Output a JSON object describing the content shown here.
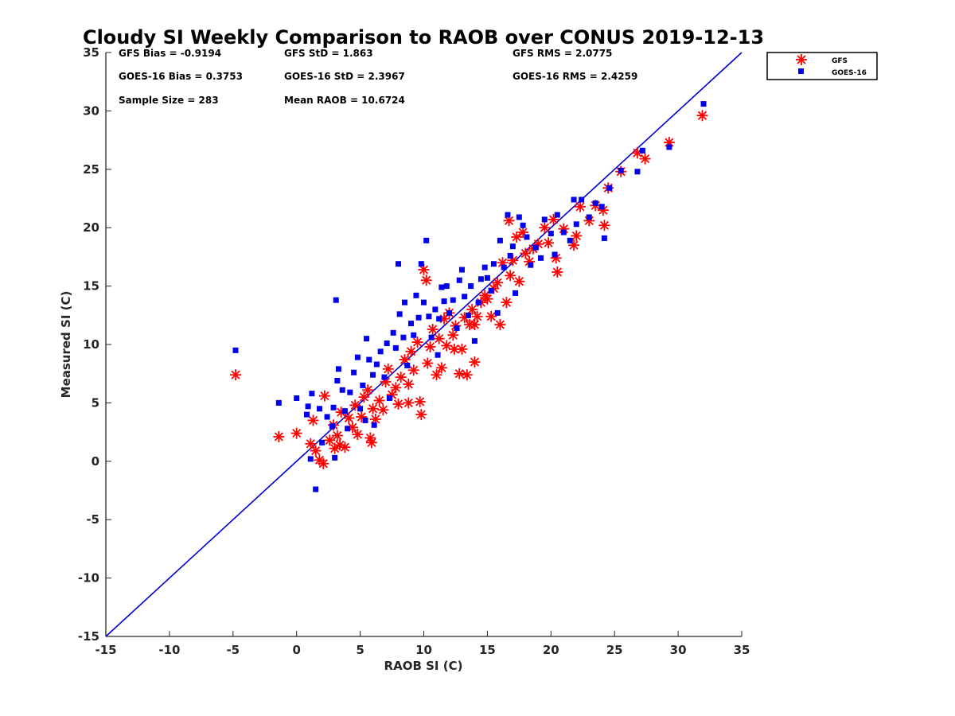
{
  "chart_data": {
    "type": "scatter",
    "title": "Cloudy SI Weekly Comparison to RAOB over CONUS 2019-12-13",
    "xlabel": "RAOB SI (C)",
    "ylabel": "Measured SI (C)",
    "xlim": [
      -15,
      35
    ],
    "ylim": [
      -15,
      35
    ],
    "xticks": [
      -15,
      -10,
      -5,
      0,
      5,
      10,
      15,
      20,
      25,
      30,
      35
    ],
    "yticks": [
      -15,
      -10,
      -5,
      0,
      5,
      10,
      15,
      20,
      25,
      30,
      35
    ],
    "grid": false,
    "legend_position": "outside-top-right",
    "reference_line": {
      "x": [
        -15,
        35
      ],
      "y": [
        -15,
        35
      ],
      "color": "#0000cc"
    },
    "stats": [
      "GFS Bias = -0.9194",
      "GFS StD = 1.863",
      "GFS RMS = 2.0775",
      "GOES-16 Bias = 0.3753",
      "GOES-16 StD = 2.3967",
      "GOES-16 RMS = 2.4259",
      "Sample Size = 283",
      "Mean RAOB = 10.6724"
    ],
    "series": [
      {
        "name": "GFS",
        "marker": "asterisk",
        "color": "#ff0000",
        "points": [
          [
            -4.8,
            7.4
          ],
          [
            -1.4,
            2.1
          ],
          [
            0.0,
            2.4
          ],
          [
            1.1,
            1.5
          ],
          [
            1.3,
            3.5
          ],
          [
            1.5,
            0.9
          ],
          [
            1.8,
            0.1
          ],
          [
            2.1,
            -0.2
          ],
          [
            2.2,
            5.6
          ],
          [
            2.6,
            1.8
          ],
          [
            2.9,
            3.1
          ],
          [
            3.2,
            2.2
          ],
          [
            3.4,
            1.4
          ],
          [
            3.5,
            4.2
          ],
          [
            3.8,
            1.2
          ],
          [
            4.1,
            3.7
          ],
          [
            4.4,
            2.9
          ],
          [
            4.6,
            4.8
          ],
          [
            4.8,
            2.3
          ],
          [
            5.1,
            3.8
          ],
          [
            5.3,
            5.5
          ],
          [
            5.6,
            6.1
          ],
          [
            5.8,
            2.0
          ],
          [
            5.9,
            1.6
          ],
          [
            6.2,
            3.6
          ],
          [
            6.5,
            5.2
          ],
          [
            6.8,
            4.4
          ],
          [
            7.0,
            6.8
          ],
          [
            7.2,
            7.9
          ],
          [
            7.5,
            5.7
          ],
          [
            7.8,
            6.3
          ],
          [
            8.0,
            4.9
          ],
          [
            8.2,
            7.2
          ],
          [
            8.5,
            8.7
          ],
          [
            8.8,
            6.6
          ],
          [
            9.0,
            9.4
          ],
          [
            9.2,
            7.8
          ],
          [
            9.5,
            10.2
          ],
          [
            9.7,
            5.1
          ],
          [
            9.8,
            4.0
          ],
          [
            10.0,
            16.4
          ],
          [
            10.2,
            15.5
          ],
          [
            10.3,
            8.4
          ],
          [
            10.5,
            9.8
          ],
          [
            10.7,
            11.3
          ],
          [
            11.0,
            7.4
          ],
          [
            11.2,
            10.5
          ],
          [
            11.4,
            8.0
          ],
          [
            11.6,
            12.2
          ],
          [
            11.8,
            9.9
          ],
          [
            12.0,
            12.7
          ],
          [
            12.3,
            10.8
          ],
          [
            12.5,
            11.6
          ],
          [
            12.8,
            7.5
          ],
          [
            13.0,
            9.6
          ],
          [
            13.2,
            12.3
          ],
          [
            13.4,
            7.4
          ],
          [
            13.6,
            11.7
          ],
          [
            13.8,
            13.0
          ],
          [
            14.0,
            8.5
          ],
          [
            14.2,
            12.4
          ],
          [
            14.5,
            13.6
          ],
          [
            14.8,
            14.2
          ],
          [
            15.0,
            13.9
          ],
          [
            15.3,
            12.4
          ],
          [
            15.5,
            14.8
          ],
          [
            15.8,
            15.3
          ],
          [
            16.0,
            11.7
          ],
          [
            16.2,
            17.0
          ],
          [
            16.5,
            13.6
          ],
          [
            16.8,
            15.9
          ],
          [
            17.0,
            17.2
          ],
          [
            17.3,
            19.2
          ],
          [
            17.5,
            15.4
          ],
          [
            17.8,
            19.6
          ],
          [
            18.0,
            17.8
          ],
          [
            18.3,
            17.1
          ],
          [
            18.6,
            18.2
          ],
          [
            19.0,
            18.6
          ],
          [
            19.5,
            20.0
          ],
          [
            19.8,
            18.7
          ],
          [
            20.2,
            20.7
          ],
          [
            20.5,
            16.2
          ],
          [
            20.4,
            17.4
          ],
          [
            21.0,
            19.9
          ],
          [
            21.8,
            18.5
          ],
          [
            22.0,
            19.3
          ],
          [
            22.3,
            21.8
          ],
          [
            23.0,
            20.6
          ],
          [
            23.5,
            21.9
          ],
          [
            24.1,
            21.5
          ],
          [
            24.2,
            20.2
          ],
          [
            24.5,
            23.4
          ],
          [
            25.5,
            24.8
          ],
          [
            26.8,
            26.4
          ],
          [
            27.4,
            25.9
          ],
          [
            29.3,
            27.3
          ],
          [
            31.9,
            29.6
          ],
          [
            16.7,
            20.6
          ],
          [
            14.0,
            11.7
          ],
          [
            12.4,
            9.6
          ],
          [
            8.8,
            5.0
          ],
          [
            6.0,
            4.5
          ],
          [
            3.0,
            1.1
          ]
        ]
      },
      {
        "name": "GOES-16",
        "marker": "square",
        "color": "#0000ee",
        "points": [
          [
            -4.8,
            9.5
          ],
          [
            -1.4,
            5.0
          ],
          [
            0.0,
            5.4
          ],
          [
            0.8,
            4.0
          ],
          [
            0.9,
            4.7
          ],
          [
            1.1,
            0.2
          ],
          [
            1.2,
            5.8
          ],
          [
            1.5,
            -2.4
          ],
          [
            1.8,
            4.5
          ],
          [
            2.0,
            1.6
          ],
          [
            2.4,
            3.8
          ],
          [
            2.8,
            3.0
          ],
          [
            2.9,
            4.6
          ],
          [
            3.0,
            0.3
          ],
          [
            3.1,
            13.8
          ],
          [
            3.2,
            6.9
          ],
          [
            3.3,
            7.9
          ],
          [
            3.6,
            6.1
          ],
          [
            3.8,
            4.3
          ],
          [
            4.0,
            2.8
          ],
          [
            4.2,
            5.9
          ],
          [
            4.5,
            7.6
          ],
          [
            4.8,
            8.9
          ],
          [
            5.0,
            4.5
          ],
          [
            5.2,
            6.5
          ],
          [
            5.4,
            3.5
          ],
          [
            5.5,
            10.5
          ],
          [
            5.7,
            8.7
          ],
          [
            6.0,
            7.4
          ],
          [
            6.1,
            3.1
          ],
          [
            6.3,
            8.3
          ],
          [
            6.6,
            9.4
          ],
          [
            6.9,
            7.2
          ],
          [
            7.1,
            10.1
          ],
          [
            7.3,
            5.4
          ],
          [
            7.6,
            11.0
          ],
          [
            7.8,
            9.7
          ],
          [
            8.0,
            16.9
          ],
          [
            8.1,
            12.6
          ],
          [
            8.4,
            10.6
          ],
          [
            8.5,
            13.6
          ],
          [
            8.7,
            8.2
          ],
          [
            9.0,
            11.8
          ],
          [
            9.2,
            10.8
          ],
          [
            9.4,
            14.2
          ],
          [
            9.6,
            12.3
          ],
          [
            9.8,
            16.9
          ],
          [
            10.0,
            13.6
          ],
          [
            10.2,
            18.9
          ],
          [
            10.4,
            12.4
          ],
          [
            10.6,
            10.6
          ],
          [
            10.9,
            13.0
          ],
          [
            11.1,
            9.1
          ],
          [
            11.4,
            14.9
          ],
          [
            11.6,
            13.7
          ],
          [
            11.8,
            15.0
          ],
          [
            12.0,
            12.7
          ],
          [
            12.3,
            13.8
          ],
          [
            12.6,
            11.4
          ],
          [
            12.8,
            15.5
          ],
          [
            13.0,
            16.4
          ],
          [
            13.2,
            14.1
          ],
          [
            13.5,
            12.5
          ],
          [
            13.7,
            15.0
          ],
          [
            14.0,
            10.3
          ],
          [
            14.3,
            13.6
          ],
          [
            14.5,
            15.6
          ],
          [
            14.8,
            16.6
          ],
          [
            15.0,
            15.7
          ],
          [
            15.3,
            14.6
          ],
          [
            15.5,
            16.9
          ],
          [
            15.8,
            12.7
          ],
          [
            16.0,
            18.9
          ],
          [
            16.3,
            16.6
          ],
          [
            16.6,
            21.1
          ],
          [
            16.8,
            17.6
          ],
          [
            17.0,
            18.4
          ],
          [
            17.2,
            14.4
          ],
          [
            17.5,
            20.9
          ],
          [
            17.8,
            20.2
          ],
          [
            18.1,
            19.2
          ],
          [
            18.4,
            16.8
          ],
          [
            18.8,
            18.3
          ],
          [
            19.2,
            17.4
          ],
          [
            19.5,
            20.7
          ],
          [
            20.0,
            19.5
          ],
          [
            20.5,
            21.1
          ],
          [
            20.3,
            17.7
          ],
          [
            21.0,
            19.6
          ],
          [
            21.5,
            18.9
          ],
          [
            21.8,
            22.4
          ],
          [
            22.0,
            20.3
          ],
          [
            22.4,
            22.4
          ],
          [
            23.0,
            20.9
          ],
          [
            23.5,
            22.1
          ],
          [
            24.0,
            21.8
          ],
          [
            24.2,
            19.1
          ],
          [
            24.6,
            23.4
          ],
          [
            25.5,
            24.9
          ],
          [
            26.8,
            24.8
          ],
          [
            27.2,
            26.6
          ],
          [
            29.3,
            26.9
          ],
          [
            32.0,
            30.6
          ],
          [
            11.2,
            12.2
          ]
        ]
      }
    ]
  }
}
